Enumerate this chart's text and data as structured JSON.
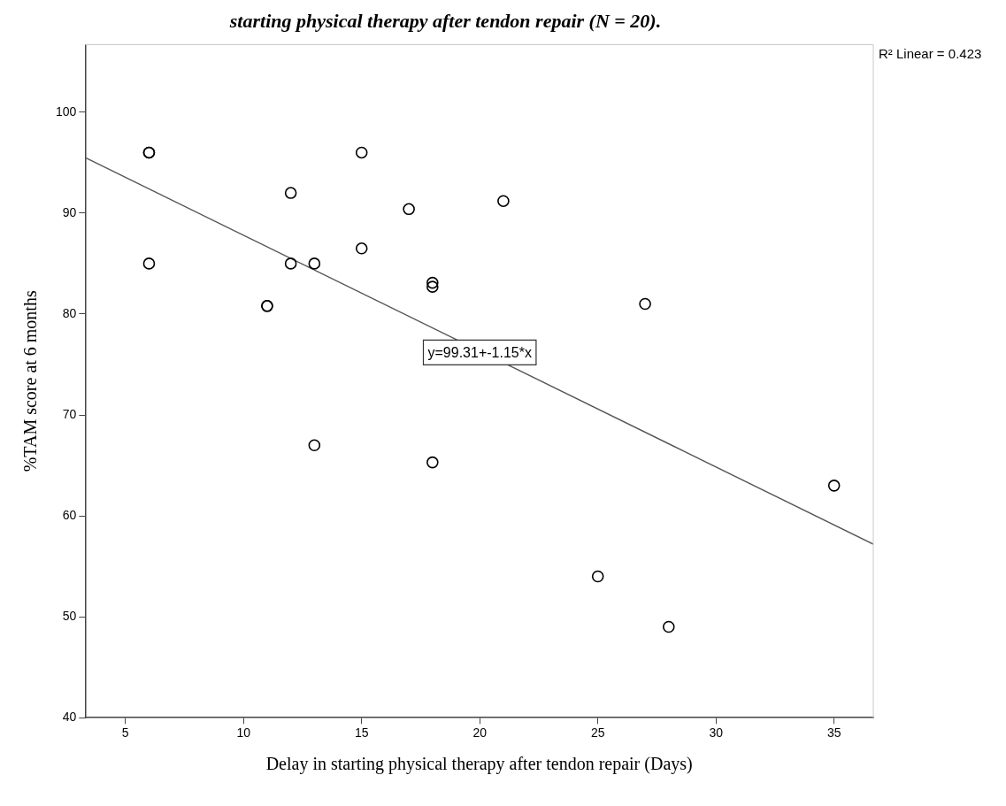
{
  "chart_data": {
    "type": "scatter",
    "title": "starting physical therapy after tendon repair (N = 20).",
    "xlabel": "Delay in starting physical therapy after tendon repair (Days)",
    "ylabel": "%TAM score at 6 months",
    "series": [
      {
        "color": "#000000",
        "marker": "circle",
        "x": [
          6,
          6,
          6,
          15,
          12,
          17,
          21,
          15,
          12,
          13,
          18,
          18,
          11,
          11,
          13,
          18,
          27,
          35,
          25,
          28
        ],
        "values": [
          96,
          96,
          85,
          96,
          92,
          90.4,
          91.2,
          86.5,
          85,
          85,
          83.1,
          82.7,
          80.8,
          80.8,
          67,
          65.3,
          81,
          63,
          54,
          49
        ]
      },
      {
        "type": "line",
        "color": "#555555",
        "marker": "none",
        "line_style": "solid",
        "x": [
          3.3,
          36.66
        ],
        "values": [
          95.5,
          57.2
        ]
      }
    ],
    "xlim": [
      3.3,
      36.66
    ],
    "xticks": [
      5,
      10,
      15,
      20,
      25,
      30,
      35
    ],
    "ylim": [
      40,
      106.7
    ],
    "yticks": [
      40,
      50,
      60,
      70,
      80,
      90,
      100
    ],
    "grid": false,
    "legend": false,
    "annotations": [
      "R² Linear = 0.423",
      {
        "text": "y=99.31+-1.15*x",
        "x": 20,
        "y": 76.2
      }
    ]
  }
}
